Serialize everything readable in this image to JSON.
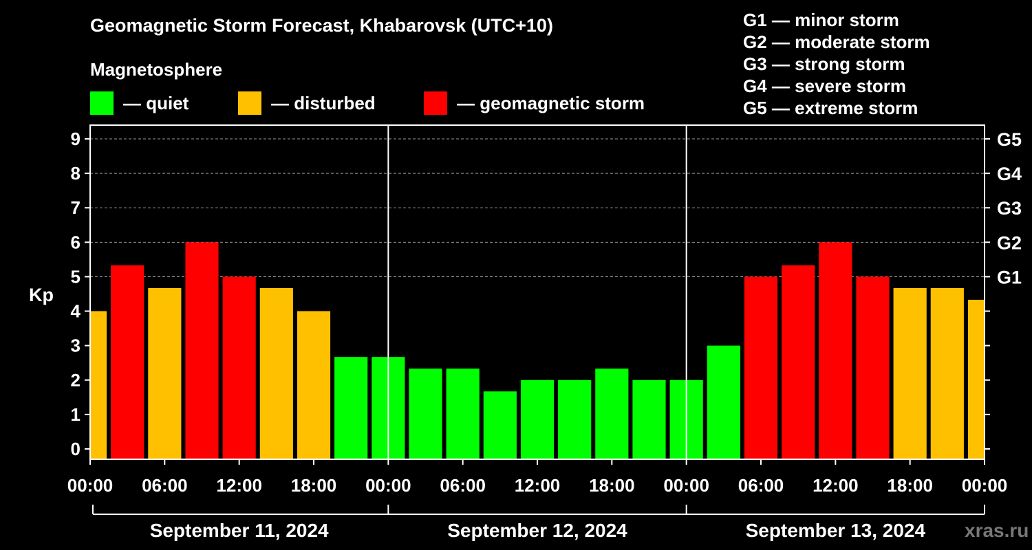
{
  "title": "Geomagnetic Storm Forecast, Khabarovsk (UTC+10)",
  "legend": {
    "title": "Magnetosphere",
    "items": [
      {
        "label": "— quiet",
        "color": "#00ff00"
      },
      {
        "label": "— disturbed",
        "color": "#ffc000"
      },
      {
        "label": "— geomagnetic storm",
        "color": "#ff0000"
      }
    ]
  },
  "storm_scale": [
    "G1 — minor storm",
    "G2 — moderate storm",
    "G3 — strong storm",
    "G4 — severe storm",
    "G5 — extreme storm"
  ],
  "watermark": "xras.ru",
  "chart_data": {
    "type": "bar",
    "ylabel": "Kp",
    "ylim": [
      -0.3,
      9.4
    ],
    "yticks": [
      0,
      1,
      2,
      3,
      4,
      5,
      6,
      7,
      8,
      9
    ],
    "right_ticks": [
      {
        "value": 5,
        "label": "G1"
      },
      {
        "value": 6,
        "label": "G2"
      },
      {
        "value": 7,
        "label": "G3"
      },
      {
        "value": 8,
        "label": "G4"
      },
      {
        "value": 9,
        "label": "G5"
      }
    ],
    "x_hours_range": [
      0,
      72
    ],
    "xtick_labels": [
      "00:00",
      "06:00",
      "12:00",
      "18:00",
      "00:00",
      "06:00",
      "12:00",
      "18:00",
      "00:00",
      "06:00",
      "12:00",
      "18:00",
      "00:00"
    ],
    "days": [
      "September 11, 2024",
      "September 12, 2024",
      "September 13, 2024"
    ],
    "colors": {
      "quiet": "#00ff00",
      "disturbed": "#ffc000",
      "storm": "#ff0000"
    },
    "bars": [
      {
        "start_hour": -1.5,
        "kp": 4.0,
        "level": "disturbed"
      },
      {
        "start_hour": 1.5,
        "kp": 5.33,
        "level": "storm"
      },
      {
        "start_hour": 4.5,
        "kp": 4.67,
        "level": "disturbed"
      },
      {
        "start_hour": 7.5,
        "kp": 6.0,
        "level": "storm"
      },
      {
        "start_hour": 10.5,
        "kp": 5.0,
        "level": "storm"
      },
      {
        "start_hour": 13.5,
        "kp": 4.67,
        "level": "disturbed"
      },
      {
        "start_hour": 16.5,
        "kp": 4.0,
        "level": "disturbed"
      },
      {
        "start_hour": 19.5,
        "kp": 2.67,
        "level": "quiet"
      },
      {
        "start_hour": 22.5,
        "kp": 2.67,
        "level": "quiet"
      },
      {
        "start_hour": 25.5,
        "kp": 2.33,
        "level": "quiet"
      },
      {
        "start_hour": 28.5,
        "kp": 2.33,
        "level": "quiet"
      },
      {
        "start_hour": 31.5,
        "kp": 1.67,
        "level": "quiet"
      },
      {
        "start_hour": 34.5,
        "kp": 2.0,
        "level": "quiet"
      },
      {
        "start_hour": 37.5,
        "kp": 2.0,
        "level": "quiet"
      },
      {
        "start_hour": 40.5,
        "kp": 2.33,
        "level": "quiet"
      },
      {
        "start_hour": 43.5,
        "kp": 2.0,
        "level": "quiet"
      },
      {
        "start_hour": 46.5,
        "kp": 2.0,
        "level": "quiet"
      },
      {
        "start_hour": 49.5,
        "kp": 3.0,
        "level": "quiet"
      },
      {
        "start_hour": 52.5,
        "kp": 5.0,
        "level": "storm"
      },
      {
        "start_hour": 55.5,
        "kp": 5.33,
        "level": "storm"
      },
      {
        "start_hour": 58.5,
        "kp": 6.0,
        "level": "storm"
      },
      {
        "start_hour": 61.5,
        "kp": 5.0,
        "level": "storm"
      },
      {
        "start_hour": 64.5,
        "kp": 4.67,
        "level": "disturbed"
      },
      {
        "start_hour": 67.5,
        "kp": 4.67,
        "level": "disturbed"
      },
      {
        "start_hour": 70.5,
        "kp": 4.33,
        "level": "disturbed"
      }
    ]
  }
}
